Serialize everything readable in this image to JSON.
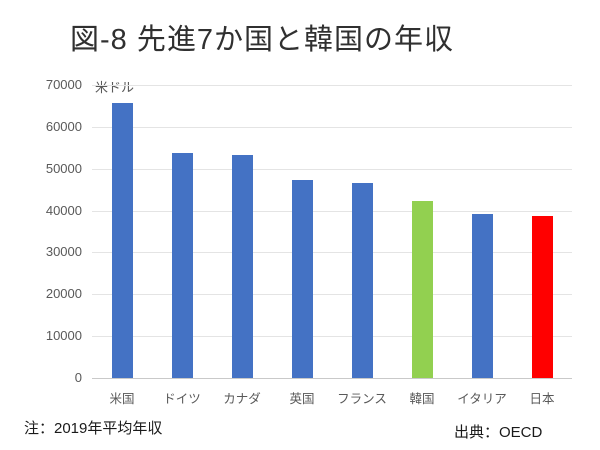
{
  "title": "図-8 先進7か国と韓国の年収",
  "footnote": "注：2019年平均年収",
  "source": "出典：OECD",
  "colors": {
    "bar_default": "#4472C4",
    "bar_korea": "#92D050",
    "bar_japan": "#FF0000",
    "gridline": "#e4e4e4",
    "axis_line": "#c9c9c9",
    "tick_text": "#595959",
    "title_text": "#303030"
  },
  "chart_data": {
    "type": "bar",
    "title": "図-8 先進7か国と韓国の年収",
    "unit_label": "米ドル",
    "xlabel": "",
    "ylabel": "米ドル",
    "categories": [
      "米国",
      "ドイツ",
      "カナダ",
      "英国",
      "フランス",
      "韓国",
      "イタリア",
      "日本"
    ],
    "values": [
      65800,
      53700,
      53300,
      47300,
      46600,
      42200,
      39300,
      38700
    ],
    "bar_colors": [
      "#4472C4",
      "#4472C4",
      "#4472C4",
      "#4472C4",
      "#4472C4",
      "#92D050",
      "#4472C4",
      "#FF0000"
    ],
    "ylim": [
      0,
      70000
    ],
    "yticks": [
      0,
      10000,
      20000,
      30000,
      40000,
      50000,
      60000,
      70000
    ],
    "grid": true,
    "legend": "none"
  }
}
